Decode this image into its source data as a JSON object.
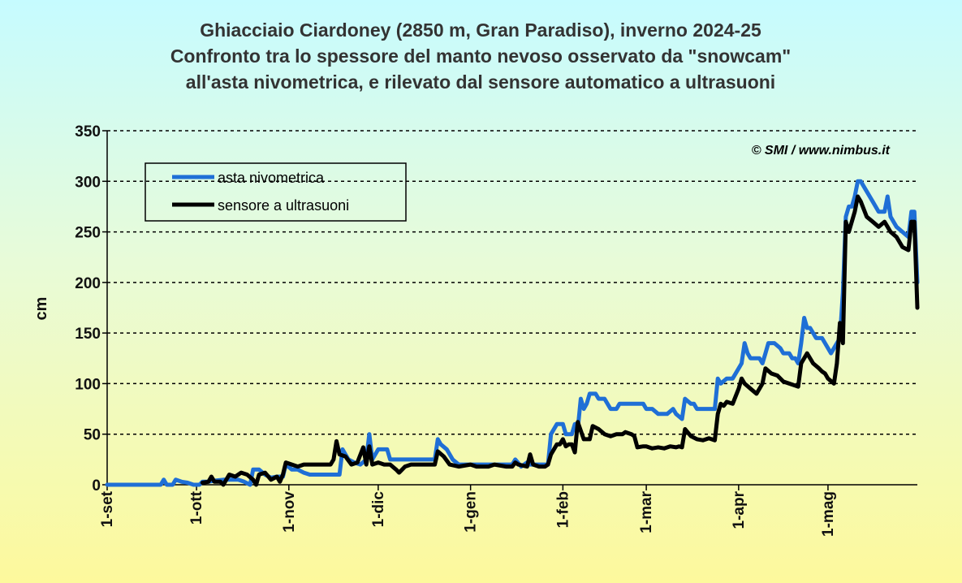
{
  "chart_data": {
    "type": "line",
    "title_lines": [
      "Ghiacciaio Ciardoney (2850 m, Gran Paradiso), inverno 2024-25",
      "Confronto tra lo spessore del manto nevoso osservato da \"snowcam\"",
      "all'asta nivometrica, e rilevato dal sensore automatico a ultrasuoni"
    ],
    "ylabel": "cm",
    "xlabel": "",
    "ylim": [
      0,
      350
    ],
    "yticks": [
      0,
      50,
      100,
      150,
      200,
      250,
      300,
      350
    ],
    "xlim": [
      "2024-09-01",
      "2025-05-31"
    ],
    "xticks": [
      {
        "label": "1-set",
        "date": "2024-09-01"
      },
      {
        "label": "1-ott",
        "date": "2024-10-01"
      },
      {
        "label": "1-nov",
        "date": "2024-11-01"
      },
      {
        "label": "1-dic",
        "date": "2024-12-01"
      },
      {
        "label": "1-gen",
        "date": "2025-01-01"
      },
      {
        "label": "1-feb",
        "date": "2025-02-01"
      },
      {
        "label": "1-mar",
        "date": "2025-03-01"
      },
      {
        "label": "1-apr",
        "date": "2025-04-01"
      },
      {
        "label": "1-mag",
        "date": "2025-05-01"
      }
    ],
    "grid": "horizontal-dashed",
    "legend_position": "top-left",
    "credit": "© SMI / www.nimbus.it",
    "series": [
      {
        "name": "asta nivometrica",
        "color": "#1f6fd6",
        "points": [
          [
            "2024-09-01",
            0
          ],
          [
            "2024-09-19",
            0
          ],
          [
            "2024-09-20",
            5
          ],
          [
            "2024-09-21",
            0
          ],
          [
            "2024-09-23",
            0
          ],
          [
            "2024-09-24",
            5
          ],
          [
            "2024-09-26",
            3
          ],
          [
            "2024-09-28",
            2
          ],
          [
            "2024-09-30",
            0
          ],
          [
            "2024-10-02",
            0
          ],
          [
            "2024-10-03",
            3
          ],
          [
            "2024-10-05",
            3
          ],
          [
            "2024-10-07",
            4
          ],
          [
            "2024-10-10",
            5
          ],
          [
            "2024-10-12",
            5
          ],
          [
            "2024-10-15",
            5
          ],
          [
            "2024-10-17",
            3
          ],
          [
            "2024-10-19",
            0
          ],
          [
            "2024-10-20",
            15
          ],
          [
            "2024-10-22",
            15
          ],
          [
            "2024-10-24",
            10
          ],
          [
            "2024-10-26",
            7
          ],
          [
            "2024-10-28",
            8
          ],
          [
            "2024-10-30",
            8
          ],
          [
            "2024-10-31",
            20
          ],
          [
            "2024-11-02",
            15
          ],
          [
            "2024-11-04",
            15
          ],
          [
            "2024-11-06",
            12
          ],
          [
            "2024-11-08",
            10
          ],
          [
            "2024-11-18",
            10
          ],
          [
            "2024-11-19",
            35
          ],
          [
            "2024-11-21",
            25
          ],
          [
            "2024-11-23",
            22
          ],
          [
            "2024-11-25",
            20
          ],
          [
            "2024-11-27",
            25
          ],
          [
            "2024-11-28",
            50
          ],
          [
            "2024-11-29",
            25
          ],
          [
            "2024-12-01",
            35
          ],
          [
            "2024-12-04",
            35
          ],
          [
            "2024-12-05",
            25
          ],
          [
            "2024-12-20",
            25
          ],
          [
            "2024-12-21",
            45
          ],
          [
            "2024-12-22",
            40
          ],
          [
            "2024-12-24",
            35
          ],
          [
            "2024-12-26",
            25
          ],
          [
            "2024-12-28",
            20
          ],
          [
            "2025-01-15",
            20
          ],
          [
            "2025-01-16",
            25
          ],
          [
            "2025-01-18",
            18
          ],
          [
            "2025-01-20",
            22
          ],
          [
            "2025-01-21",
            20
          ],
          [
            "2025-01-27",
            20
          ],
          [
            "2025-01-28",
            50
          ],
          [
            "2025-01-30",
            60
          ],
          [
            "2025-02-01",
            60
          ],
          [
            "2025-02-02",
            50
          ],
          [
            "2025-02-04",
            50
          ],
          [
            "2025-02-05",
            60
          ],
          [
            "2025-02-06",
            55
          ],
          [
            "2025-02-07",
            85
          ],
          [
            "2025-02-08",
            75
          ],
          [
            "2025-02-09",
            80
          ],
          [
            "2025-02-10",
            90
          ],
          [
            "2025-02-12",
            90
          ],
          [
            "2025-02-13",
            85
          ],
          [
            "2025-02-15",
            85
          ],
          [
            "2025-02-17",
            75
          ],
          [
            "2025-02-19",
            75
          ],
          [
            "2025-02-20",
            80
          ],
          [
            "2025-02-28",
            80
          ],
          [
            "2025-03-01",
            75
          ],
          [
            "2025-03-03",
            75
          ],
          [
            "2025-03-05",
            70
          ],
          [
            "2025-03-08",
            70
          ],
          [
            "2025-03-10",
            75
          ],
          [
            "2025-03-11",
            70
          ],
          [
            "2025-03-13",
            65
          ],
          [
            "2025-03-14",
            85
          ],
          [
            "2025-03-16",
            80
          ],
          [
            "2025-03-17",
            80
          ],
          [
            "2025-03-18",
            75
          ],
          [
            "2025-03-24",
            75
          ],
          [
            "2025-03-25",
            105
          ],
          [
            "2025-03-26",
            100
          ],
          [
            "2025-03-28",
            105
          ],
          [
            "2025-03-30",
            105
          ],
          [
            "2025-04-01",
            115
          ],
          [
            "2025-04-02",
            120
          ],
          [
            "2025-04-03",
            140
          ],
          [
            "2025-04-04",
            130
          ],
          [
            "2025-04-05",
            125
          ],
          [
            "2025-04-08",
            125
          ],
          [
            "2025-04-09",
            120
          ],
          [
            "2025-04-10",
            130
          ],
          [
            "2025-04-11",
            140
          ],
          [
            "2025-04-13",
            140
          ],
          [
            "2025-04-15",
            135
          ],
          [
            "2025-04-16",
            130
          ],
          [
            "2025-04-18",
            130
          ],
          [
            "2025-04-19",
            125
          ],
          [
            "2025-04-20",
            125
          ],
          [
            "2025-04-21",
            120
          ],
          [
            "2025-04-22",
            140
          ],
          [
            "2025-04-23",
            165
          ],
          [
            "2025-04-24",
            155
          ],
          [
            "2025-04-25",
            155
          ],
          [
            "2025-04-26",
            150
          ],
          [
            "2025-04-27",
            145
          ],
          [
            "2025-04-29",
            145
          ],
          [
            "2025-04-30",
            140
          ],
          [
            "2025-05-01",
            135
          ],
          [
            "2025-05-02",
            130
          ],
          [
            "2025-05-03",
            135
          ],
          [
            "2025-05-05",
            145
          ],
          [
            "2025-05-06",
            190
          ],
          [
            "2025-05-07",
            265
          ],
          [
            "2025-05-08",
            275
          ],
          [
            "2025-05-09",
            275
          ],
          [
            "2025-05-10",
            285
          ],
          [
            "2025-05-11",
            300
          ],
          [
            "2025-05-12",
            300
          ],
          [
            "2025-05-14",
            290
          ],
          [
            "2025-05-16",
            280
          ],
          [
            "2025-05-18",
            270
          ],
          [
            "2025-05-20",
            270
          ],
          [
            "2025-05-21",
            285
          ],
          [
            "2025-05-22",
            265
          ],
          [
            "2025-05-24",
            255
          ],
          [
            "2025-05-26",
            250
          ],
          [
            "2025-05-28",
            245
          ],
          [
            "2025-05-29",
            270
          ],
          [
            "2025-05-30",
            270
          ],
          [
            "2025-05-31",
            200
          ]
        ]
      },
      {
        "name": "sensore a ultrasuoni",
        "color": "#000000",
        "points": [
          [
            "2024-10-03",
            2
          ],
          [
            "2024-10-05",
            3
          ],
          [
            "2024-10-06",
            8
          ],
          [
            "2024-10-07",
            3
          ],
          [
            "2024-10-09",
            3
          ],
          [
            "2024-10-10",
            0
          ],
          [
            "2024-10-12",
            10
          ],
          [
            "2024-10-14",
            8
          ],
          [
            "2024-10-16",
            12
          ],
          [
            "2024-10-18",
            10
          ],
          [
            "2024-10-20",
            5
          ],
          [
            "2024-10-21",
            0
          ],
          [
            "2024-10-22",
            10
          ],
          [
            "2024-10-24",
            12
          ],
          [
            "2024-10-26",
            5
          ],
          [
            "2024-10-28",
            8
          ],
          [
            "2024-10-29",
            3
          ],
          [
            "2024-10-30",
            10
          ],
          [
            "2024-10-31",
            22
          ],
          [
            "2024-11-02",
            20
          ],
          [
            "2024-11-04",
            18
          ],
          [
            "2024-11-06",
            20
          ],
          [
            "2024-11-08",
            20
          ],
          [
            "2024-11-10",
            20
          ],
          [
            "2024-11-15",
            20
          ],
          [
            "2024-11-16",
            25
          ],
          [
            "2024-11-17",
            43
          ],
          [
            "2024-11-18",
            30
          ],
          [
            "2024-11-20",
            28
          ],
          [
            "2024-11-22",
            20
          ],
          [
            "2024-11-24",
            22
          ],
          [
            "2024-11-26",
            37
          ],
          [
            "2024-11-27",
            20
          ],
          [
            "2024-11-28",
            38
          ],
          [
            "2024-11-29",
            20
          ],
          [
            "2024-12-01",
            22
          ],
          [
            "2024-12-03",
            20
          ],
          [
            "2024-12-05",
            20
          ],
          [
            "2024-12-07",
            15
          ],
          [
            "2024-12-08",
            12
          ],
          [
            "2024-12-10",
            18
          ],
          [
            "2024-12-12",
            20
          ],
          [
            "2024-12-14",
            20
          ],
          [
            "2024-12-20",
            20
          ],
          [
            "2024-12-21",
            33
          ],
          [
            "2024-12-23",
            28
          ],
          [
            "2024-12-25",
            20
          ],
          [
            "2024-12-28",
            18
          ],
          [
            "2025-01-01",
            20
          ],
          [
            "2025-01-03",
            18
          ],
          [
            "2025-01-07",
            18
          ],
          [
            "2025-01-09",
            20
          ],
          [
            "2025-01-13",
            18
          ],
          [
            "2025-01-15",
            18
          ],
          [
            "2025-01-16",
            22
          ],
          [
            "2025-01-17",
            20
          ],
          [
            "2025-01-20",
            18
          ],
          [
            "2025-01-21",
            30
          ],
          [
            "2025-01-22",
            20
          ],
          [
            "2025-01-24",
            18
          ],
          [
            "2025-01-26",
            18
          ],
          [
            "2025-01-27",
            20
          ],
          [
            "2025-01-28",
            30
          ],
          [
            "2025-01-30",
            40
          ],
          [
            "2025-01-31",
            40
          ],
          [
            "2025-02-01",
            45
          ],
          [
            "2025-02-02",
            38
          ],
          [
            "2025-02-03",
            40
          ],
          [
            "2025-02-04",
            40
          ],
          [
            "2025-02-05",
            32
          ],
          [
            "2025-02-06",
            62
          ],
          [
            "2025-02-08",
            45
          ],
          [
            "2025-02-10",
            45
          ],
          [
            "2025-02-11",
            58
          ],
          [
            "2025-02-13",
            55
          ],
          [
            "2025-02-15",
            50
          ],
          [
            "2025-02-17",
            48
          ],
          [
            "2025-02-19",
            50
          ],
          [
            "2025-02-21",
            50
          ],
          [
            "2025-02-22",
            52
          ],
          [
            "2025-02-24",
            50
          ],
          [
            "2025-02-25",
            48
          ],
          [
            "2025-02-26",
            37
          ],
          [
            "2025-02-28",
            38
          ],
          [
            "2025-03-01",
            38
          ],
          [
            "2025-03-03",
            36
          ],
          [
            "2025-03-05",
            37
          ],
          [
            "2025-03-07",
            36
          ],
          [
            "2025-03-09",
            38
          ],
          [
            "2025-03-11",
            37
          ],
          [
            "2025-03-12",
            38
          ],
          [
            "2025-03-13",
            37
          ],
          [
            "2025-03-14",
            55
          ],
          [
            "2025-03-16",
            48
          ],
          [
            "2025-03-18",
            45
          ],
          [
            "2025-03-20",
            44
          ],
          [
            "2025-03-22",
            46
          ],
          [
            "2025-03-24",
            44
          ],
          [
            "2025-03-25",
            70
          ],
          [
            "2025-03-26",
            80
          ],
          [
            "2025-03-27",
            78
          ],
          [
            "2025-03-28",
            82
          ],
          [
            "2025-03-30",
            80
          ],
          [
            "2025-04-01",
            95
          ],
          [
            "2025-04-02",
            105
          ],
          [
            "2025-04-03",
            100
          ],
          [
            "2025-04-05",
            95
          ],
          [
            "2025-04-07",
            90
          ],
          [
            "2025-04-08",
            95
          ],
          [
            "2025-04-09",
            100
          ],
          [
            "2025-04-10",
            115
          ],
          [
            "2025-04-12",
            110
          ],
          [
            "2025-04-14",
            108
          ],
          [
            "2025-04-16",
            102
          ],
          [
            "2025-04-18",
            100
          ],
          [
            "2025-04-20",
            98
          ],
          [
            "2025-04-21",
            97
          ],
          [
            "2025-04-22",
            120
          ],
          [
            "2025-04-24",
            130
          ],
          [
            "2025-04-26",
            120
          ],
          [
            "2025-04-28",
            115
          ],
          [
            "2025-04-29",
            112
          ],
          [
            "2025-04-30",
            110
          ],
          [
            "2025-05-01",
            105
          ],
          [
            "2025-05-03",
            100
          ],
          [
            "2025-05-04",
            120
          ],
          [
            "2025-05-05",
            160
          ],
          [
            "2025-05-06",
            140
          ],
          [
            "2025-05-07",
            260
          ],
          [
            "2025-05-08",
            250
          ],
          [
            "2025-05-10",
            270
          ],
          [
            "2025-05-11",
            285
          ],
          [
            "2025-05-12",
            280
          ],
          [
            "2025-05-14",
            265
          ],
          [
            "2025-05-16",
            260
          ],
          [
            "2025-05-18",
            255
          ],
          [
            "2025-05-20",
            260
          ],
          [
            "2025-05-21",
            255
          ],
          [
            "2025-05-22",
            250
          ],
          [
            "2025-05-24",
            245
          ],
          [
            "2025-05-26",
            235
          ],
          [
            "2025-05-28",
            232
          ],
          [
            "2025-05-29",
            260
          ],
          [
            "2025-05-30",
            260
          ],
          [
            "2025-05-31",
            175
          ]
        ]
      }
    ]
  }
}
